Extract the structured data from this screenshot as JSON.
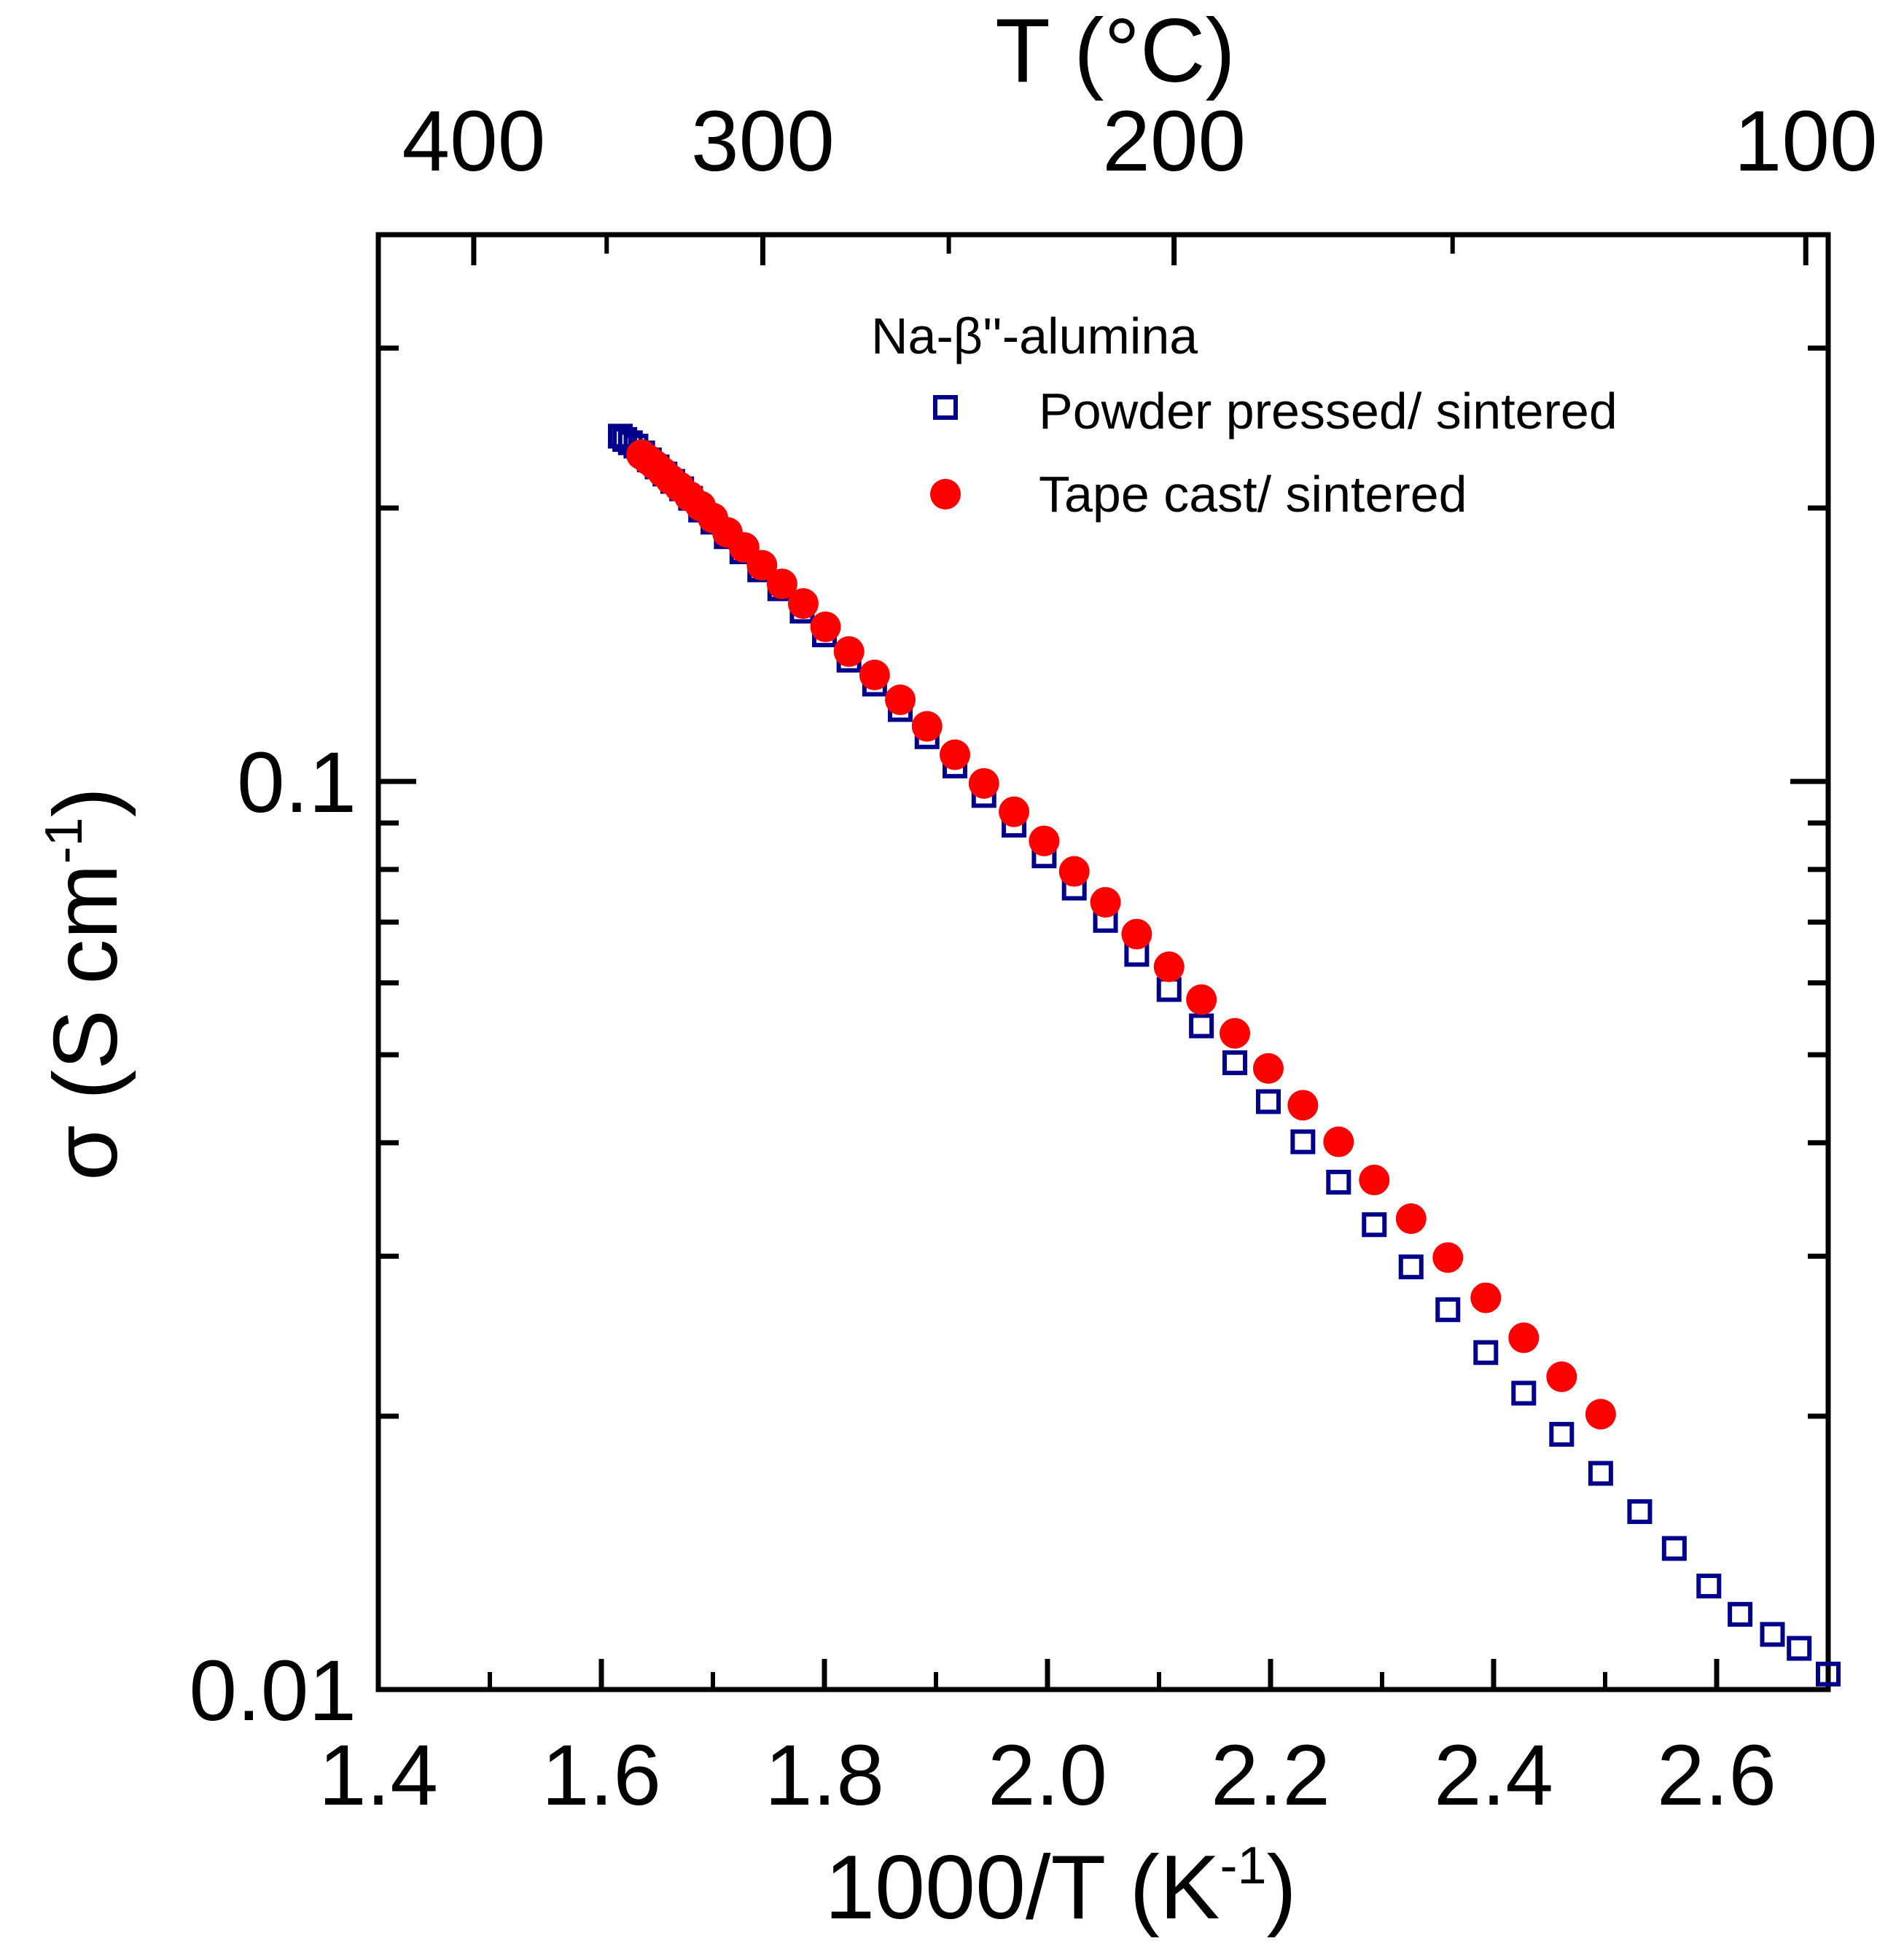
{
  "chart_data": {
    "type": "scatter",
    "x_label": "1000/T (K",
    "x_label_sup": "-1",
    "x_label_close": ")",
    "y_label": "σ (S cm",
    "y_label_sup": "-1",
    "y_label_close": ")",
    "top_label": "T (°C)",
    "xlim": [
      1.4,
      2.7
    ],
    "ylim": [
      0.01,
      0.4
    ],
    "y_scale": "log",
    "x_ticks": [
      1.4,
      1.6,
      1.8,
      2.0,
      2.2,
      2.4,
      2.6
    ],
    "x_tick_labels": [
      "1.4",
      "1.6",
      "1.8",
      "2.0",
      "2.2",
      "2.4",
      "2.6"
    ],
    "y_ticks": [
      0.1,
      0.01
    ],
    "y_tick_labels": [
      "0.1",
      "0.01"
    ],
    "top_ticks_celsius": [
      400,
      300,
      200,
      100
    ],
    "top_tick_labels": [
      "400",
      "300",
      "200",
      "100"
    ],
    "top_minor_ticks_celsius": [
      350,
      250,
      150
    ],
    "legend_title": "Na-β''-alumina",
    "series": [
      {
        "name": "Powder pressed/ sintered",
        "marker": "open-square",
        "color": "#00008B",
        "points": [
          [
            1.617,
            0.24
          ],
          [
            1.621,
            0.238
          ],
          [
            1.626,
            0.236
          ],
          [
            1.631,
            0.234
          ],
          [
            1.637,
            0.23
          ],
          [
            1.643,
            0.226
          ],
          [
            1.65,
            0.222
          ],
          [
            1.657,
            0.218
          ],
          [
            1.664,
            0.214
          ],
          [
            1.672,
            0.21
          ],
          [
            1.68,
            0.205
          ],
          [
            1.689,
            0.199
          ],
          [
            1.7,
            0.193
          ],
          [
            1.712,
            0.186
          ],
          [
            1.726,
            0.179
          ],
          [
            1.742,
            0.171
          ],
          [
            1.76,
            0.163
          ],
          [
            1.78,
            0.154
          ],
          [
            1.8,
            0.145
          ],
          [
            1.822,
            0.136
          ],
          [
            1.845,
            0.128
          ],
          [
            1.868,
            0.12
          ],
          [
            1.892,
            0.112
          ],
          [
            1.917,
            0.104
          ],
          [
            1.943,
            0.0965
          ],
          [
            1.97,
            0.0895
          ],
          [
            1.997,
            0.0828
          ],
          [
            2.024,
            0.0763
          ],
          [
            2.052,
            0.0703
          ],
          [
            2.08,
            0.0645
          ],
          [
            2.109,
            0.059
          ],
          [
            2.138,
            0.0538
          ],
          [
            2.168,
            0.049
          ],
          [
            2.198,
            0.0444
          ],
          [
            2.229,
            0.0401
          ],
          [
            2.261,
            0.0362
          ],
          [
            2.293,
            0.0325
          ],
          [
            2.326,
            0.0292
          ],
          [
            2.359,
            0.0262
          ],
          [
            2.393,
            0.0235
          ],
          [
            2.427,
            0.0212
          ],
          [
            2.461,
            0.0191
          ],
          [
            2.496,
            0.0173
          ],
          [
            2.531,
            0.0157
          ],
          [
            2.562,
            0.0143
          ],
          [
            2.593,
            0.013
          ],
          [
            2.621,
            0.0121
          ],
          [
            2.65,
            0.0115
          ],
          [
            2.674,
            0.0111
          ],
          [
            2.7,
            0.0104
          ]
        ]
      },
      {
        "name": "Tape cast/ sintered",
        "marker": "filled-circle",
        "color": "#FF0000",
        "points": [
          [
            1.636,
            0.229
          ],
          [
            1.642,
            0.226
          ],
          [
            1.648,
            0.223
          ],
          [
            1.655,
            0.219
          ],
          [
            1.662,
            0.215
          ],
          [
            1.67,
            0.211
          ],
          [
            1.679,
            0.206
          ],
          [
            1.689,
            0.201
          ],
          [
            1.7,
            0.195
          ],
          [
            1.713,
            0.188
          ],
          [
            1.728,
            0.181
          ],
          [
            1.744,
            0.173
          ],
          [
            1.762,
            0.165
          ],
          [
            1.781,
            0.157
          ],
          [
            1.801,
            0.148
          ],
          [
            1.822,
            0.139
          ],
          [
            1.845,
            0.131
          ],
          [
            1.868,
            0.123
          ],
          [
            1.892,
            0.115
          ],
          [
            1.917,
            0.107
          ],
          [
            1.943,
            0.0995
          ],
          [
            1.97,
            0.0926
          ],
          [
            1.997,
            0.086
          ],
          [
            2.024,
            0.0796
          ],
          [
            2.052,
            0.0736
          ],
          [
            2.08,
            0.0679
          ],
          [
            2.109,
            0.0625
          ],
          [
            2.138,
            0.0575
          ],
          [
            2.168,
            0.0528
          ],
          [
            2.198,
            0.0483
          ],
          [
            2.229,
            0.044
          ],
          [
            2.261,
            0.0401
          ],
          [
            2.293,
            0.0364
          ],
          [
            2.326,
            0.033
          ],
          [
            2.359,
            0.0299
          ],
          [
            2.393,
            0.027
          ],
          [
            2.427,
            0.0244
          ],
          [
            2.461,
            0.0221
          ],
          [
            2.496,
            0.0201
          ]
        ]
      }
    ]
  }
}
